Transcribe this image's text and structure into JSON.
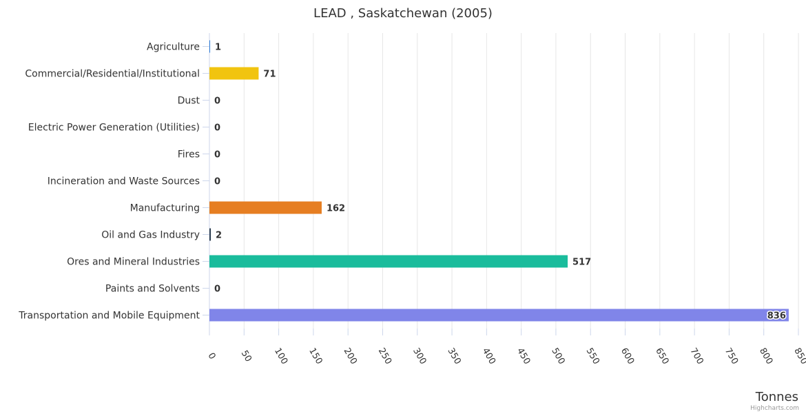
{
  "chart_data": {
    "type": "bar",
    "orientation": "horizontal",
    "title": "LEAD , Saskatchewan (2005)",
    "xlabel": "",
    "ylabel": "Tonnes",
    "xlim": [
      0,
      850
    ],
    "tick_step": 50,
    "grid": true,
    "credits": "Highcharts.com",
    "categories": [
      "Agriculture",
      "Commercial/Residential/Institutional",
      "Dust",
      "Electric Power Generation (Utilities)",
      "Fires",
      "Incineration and Waste Sources",
      "Manufacturing",
      "Oil and Gas Industry",
      "Ores and Mineral Industries",
      "Paints and Solvents",
      "Transportation and Mobile Equipment"
    ],
    "values": [
      1,
      71,
      0,
      0,
      0,
      0,
      162,
      2,
      517,
      0,
      836
    ],
    "colors": [
      "#2f7ed8",
      "#f1c40f",
      "#8e44ad",
      "#e74c3c",
      "#16a085",
      "#34495e",
      "#e67e22",
      "#2c3e50",
      "#1abc9c",
      "#95a5a6",
      "#8085e9"
    ]
  }
}
